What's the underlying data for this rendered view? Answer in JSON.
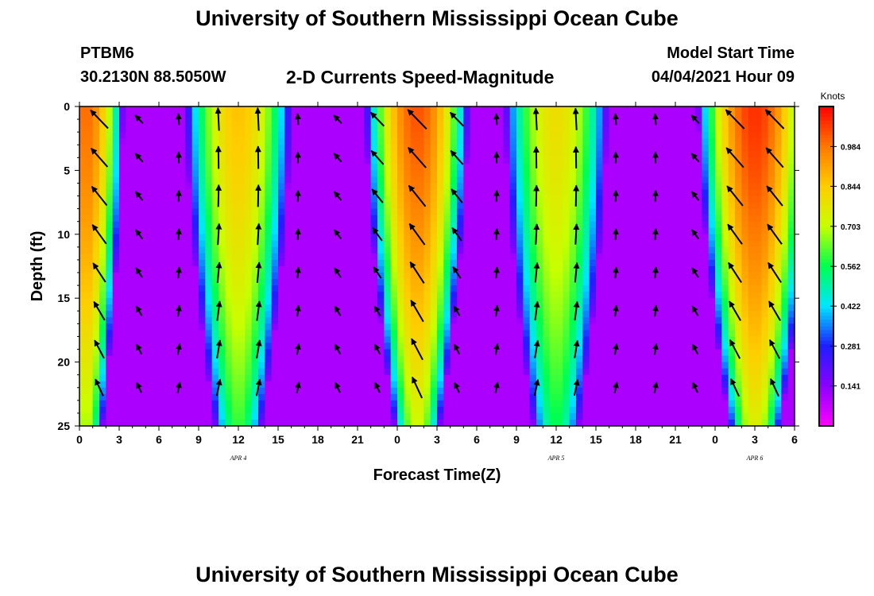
{
  "header": {
    "title": "University of Southern Mississippi Ocean Cube",
    "station": "PTBM6",
    "coordinates": "30.2130N  88.5050W",
    "subtitle": "2-D Currents Speed-Magnitude",
    "model_start_label": "Model Start Time",
    "model_start_value": "04/04/2021 Hour 09"
  },
  "footer": {
    "title": "University of Southern Mississippi Ocean Cube"
  },
  "chart_data": {
    "type": "heatmap",
    "title": "2-D Currents Speed-Magnitude",
    "xlabel": "Forecast Time(Z)",
    "ylabel": "Depth (ft)",
    "x_ticks": [
      "0",
      "3",
      "6",
      "9",
      "12",
      "15",
      "18",
      "21",
      "0",
      "3",
      "6",
      "9",
      "12",
      "15",
      "18",
      "21",
      "0",
      "3",
      "6"
    ],
    "x_range_hours": [
      0,
      54
    ],
    "date_labels": [
      {
        "label": "APR 4",
        "hour": 12
      },
      {
        "label": "APR 5",
        "hour": 36
      },
      {
        "label": "APR 6",
        "hour": 51
      }
    ],
    "y_ticks": [
      "0",
      "5",
      "10",
      "15",
      "20",
      "25"
    ],
    "y_range_ft": [
      0,
      25
    ],
    "y_inverted": true,
    "colorbar": {
      "title": "Knots",
      "ticks": [
        "0.141",
        "0.281",
        "0.422",
        "0.562",
        "0.703",
        "0.844",
        "0.984"
      ],
      "range": [
        0.0,
        1.125
      ],
      "colors": [
        "#ff00ff",
        "#8a00ff",
        "#1e1eff",
        "#00e6ff",
        "#00ff50",
        "#c8ff00",
        "#ffcd00",
        "#ff7800",
        "#ff0000"
      ]
    },
    "cycle_peaks": [
      {
        "hour": 0.5,
        "speed": 1.0,
        "halfwidth": 2.8
      },
      {
        "hour": 12.0,
        "speed": 0.86,
        "halfwidth": 4.0
      },
      {
        "hour": 25.5,
        "speed": 1.03,
        "halfwidth": 3.9
      },
      {
        "hour": 36.0,
        "speed": 0.8,
        "halfwidth": 3.9
      },
      {
        "hour": 51.0,
        "speed": 1.07,
        "halfwidth": 4.3
      }
    ],
    "background_speed": 0.1
  }
}
